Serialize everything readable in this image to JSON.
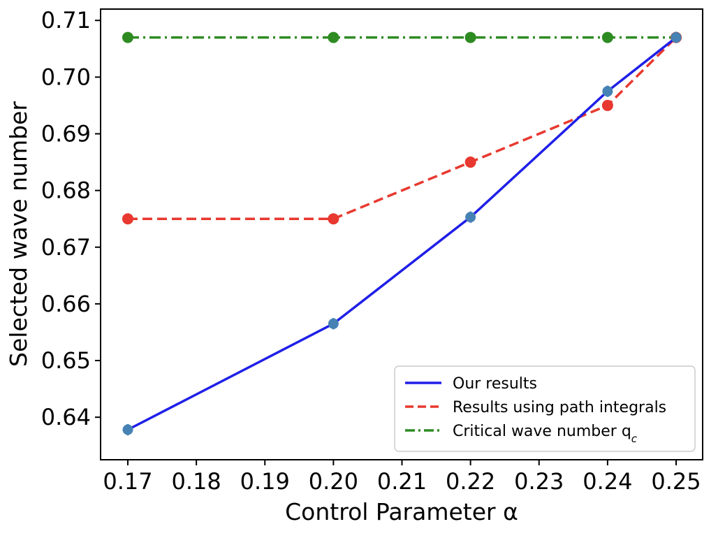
{
  "chart_data": {
    "type": "line",
    "xlabel": "Control Parameter α",
    "ylabel": "Selected wave number",
    "x_ticks": [
      "0.17",
      "0.18",
      "0.19",
      "0.20",
      "0.21",
      "0.22",
      "0.23",
      "0.24",
      "0.25"
    ],
    "y_ticks": [
      "0.64",
      "0.65",
      "0.66",
      "0.67",
      "0.68",
      "0.69",
      "0.70",
      "0.71"
    ],
    "ylim": [
      0.6325,
      0.712
    ],
    "legend_position": "lower-right",
    "grid": false,
    "series": [
      {
        "name": "Our results",
        "color": "#1f1fe8",
        "linestyle": "solid",
        "marker_color": "#4682b4",
        "x": [
          "0.17",
          "0.20",
          "0.22",
          "0.24",
          "0.25"
        ],
        "values": [
          0.6378,
          0.6565,
          0.6753,
          0.6975,
          0.707
        ],
        "error": [
          0.001,
          0.001,
          0.001,
          0.001,
          0.001
        ]
      },
      {
        "name": "Results using path integrals",
        "color": "#e8382f",
        "linestyle": "dashed",
        "marker_color": "#e8382f",
        "x": [
          "0.17",
          "0.20",
          "0.22",
          "0.24",
          "0.25"
        ],
        "values": [
          0.675,
          0.675,
          0.685,
          0.695,
          0.707
        ]
      },
      {
        "name": "Critical wave number q",
        "name_subscript": "c",
        "color": "#2e8b22",
        "linestyle": "dashdot",
        "marker_color": "#2e8b22",
        "x": [
          "0.17",
          "0.20",
          "0.22",
          "0.24",
          "0.25"
        ],
        "values": [
          0.707,
          0.707,
          0.707,
          0.707,
          0.707
        ]
      }
    ]
  }
}
